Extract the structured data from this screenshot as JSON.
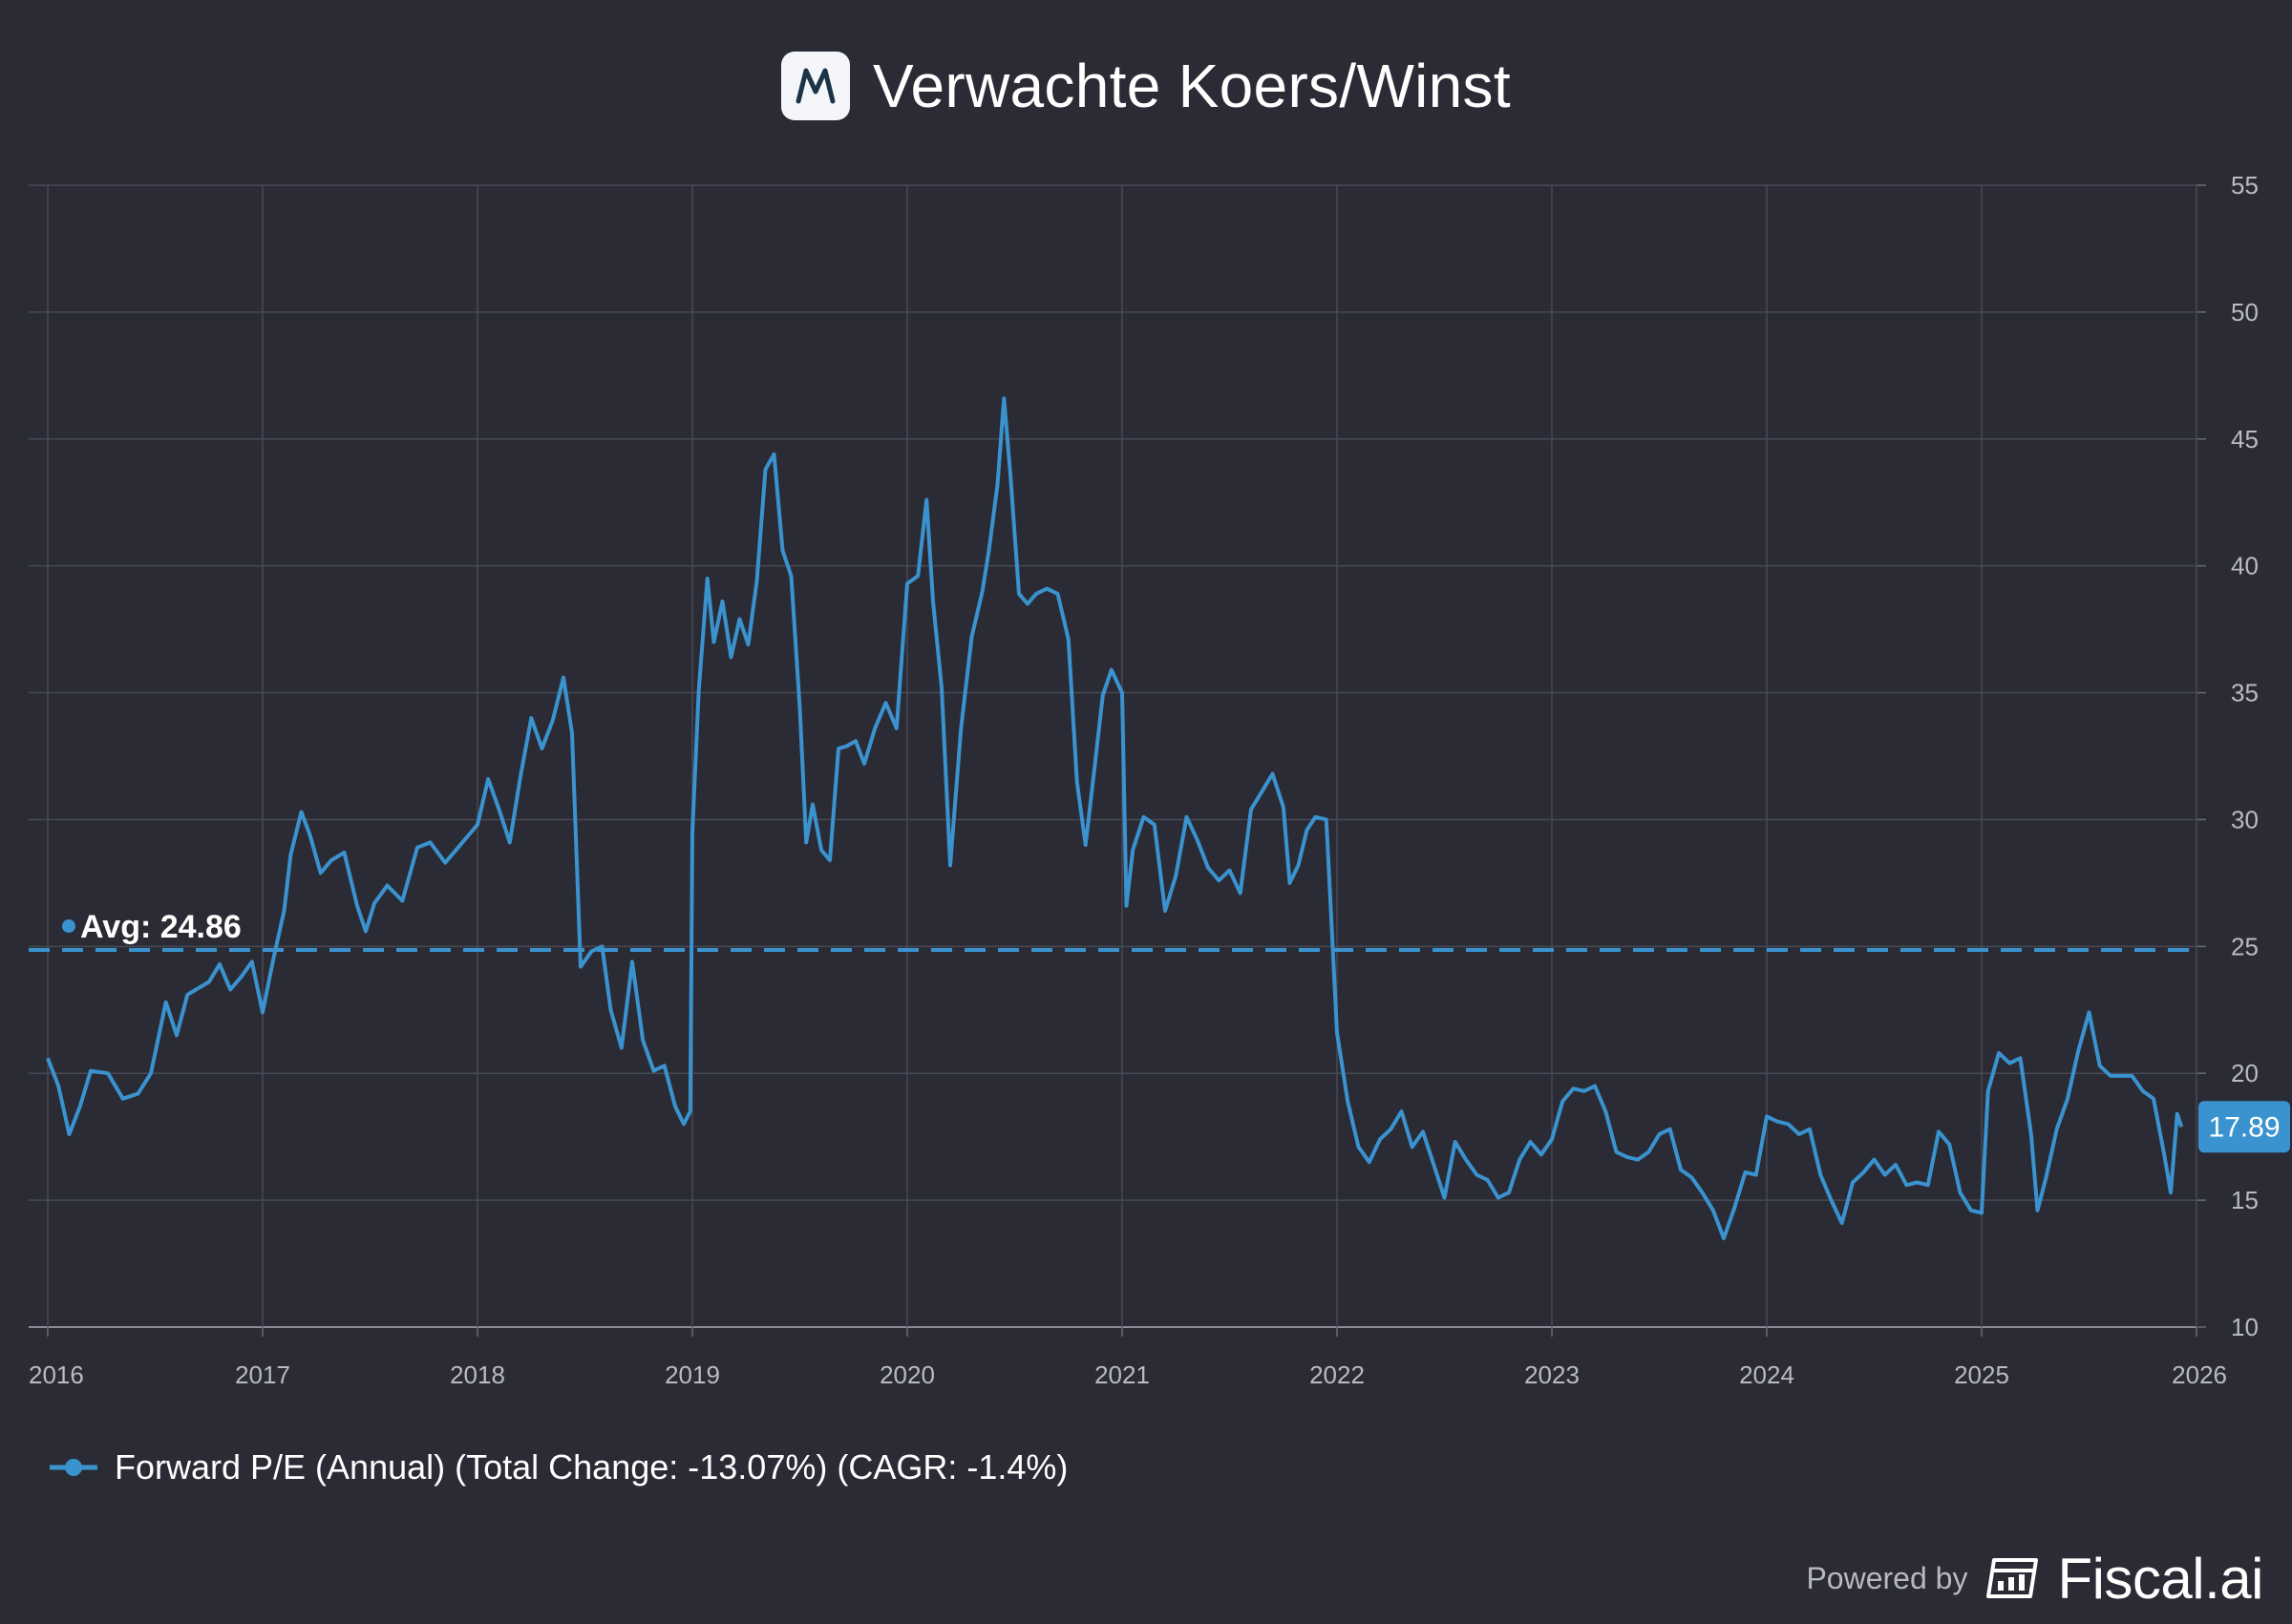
{
  "header": {
    "title": "Verwachte Koers/Winst",
    "logo_icon": "company-m-logo"
  },
  "chart_data": {
    "type": "line",
    "title": "Verwachte Koers/Winst",
    "xlabel": "",
    "ylabel": "",
    "xlim": [
      2016.0,
      2026.0
    ],
    "ylim": [
      10,
      55
    ],
    "x_ticks": [
      "2016",
      "2017",
      "2018",
      "2019",
      "2020",
      "2021",
      "2022",
      "2023",
      "2024",
      "2025",
      "2026"
    ],
    "y_ticks": [
      10,
      15,
      20,
      25,
      30,
      35,
      40,
      45,
      50,
      55
    ],
    "grid": true,
    "legend_position": "bottom-left",
    "average": {
      "label": "Avg: 24.86",
      "value": 24.86
    },
    "last_value_label": "17.89",
    "series": [
      {
        "name": "Forward P/E (Annual) (Total Change: -13.07%) (CAGR: -1.4%)",
        "color": "#3a93cf",
        "points": [
          [
            2016.0,
            20.6
          ],
          [
            2016.05,
            19.5
          ],
          [
            2016.1,
            17.6
          ],
          [
            2016.15,
            18.7
          ],
          [
            2016.2,
            20.1
          ],
          [
            2016.28,
            20.0
          ],
          [
            2016.35,
            19.0
          ],
          [
            2016.42,
            19.2
          ],
          [
            2016.48,
            20.0
          ],
          [
            2016.55,
            22.8
          ],
          [
            2016.6,
            21.5
          ],
          [
            2016.65,
            23.1
          ],
          [
            2016.75,
            23.6
          ],
          [
            2016.8,
            24.3
          ],
          [
            2016.85,
            23.3
          ],
          [
            2016.9,
            23.8
          ],
          [
            2016.95,
            24.4
          ],
          [
            2017.0,
            22.4
          ],
          [
            2017.05,
            24.5
          ],
          [
            2017.1,
            26.4
          ],
          [
            2017.13,
            28.6
          ],
          [
            2017.18,
            30.3
          ],
          [
            2017.22,
            29.4
          ],
          [
            2017.27,
            27.9
          ],
          [
            2017.32,
            28.4
          ],
          [
            2017.38,
            28.7
          ],
          [
            2017.44,
            26.6
          ],
          [
            2017.48,
            25.6
          ],
          [
            2017.52,
            26.7
          ],
          [
            2017.58,
            27.4
          ],
          [
            2017.65,
            26.8
          ],
          [
            2017.72,
            28.9
          ],
          [
            2017.78,
            29.1
          ],
          [
            2017.85,
            28.3
          ],
          [
            2017.92,
            29.0
          ],
          [
            2018.0,
            29.8
          ],
          [
            2018.05,
            31.6
          ],
          [
            2018.1,
            30.4
          ],
          [
            2018.15,
            29.1
          ],
          [
            2018.2,
            31.7
          ],
          [
            2018.25,
            34.0
          ],
          [
            2018.3,
            32.8
          ],
          [
            2018.35,
            33.9
          ],
          [
            2018.4,
            35.6
          ],
          [
            2018.44,
            33.4
          ],
          [
            2018.48,
            24.2
          ],
          [
            2018.53,
            24.8
          ],
          [
            2018.58,
            25.0
          ],
          [
            2018.62,
            22.5
          ],
          [
            2018.67,
            21.0
          ],
          [
            2018.72,
            24.4
          ],
          [
            2018.77,
            21.3
          ],
          [
            2018.82,
            20.1
          ],
          [
            2018.87,
            20.3
          ],
          [
            2018.92,
            18.7
          ],
          [
            2018.96,
            18.0
          ],
          [
            2018.99,
            18.5
          ],
          [
            2019.0,
            29.5
          ],
          [
            2019.03,
            35.1
          ],
          [
            2019.07,
            39.5
          ],
          [
            2019.1,
            37.0
          ],
          [
            2019.14,
            38.6
          ],
          [
            2019.18,
            36.4
          ],
          [
            2019.22,
            37.9
          ],
          [
            2019.26,
            36.9
          ],
          [
            2019.3,
            39.4
          ],
          [
            2019.34,
            43.8
          ],
          [
            2019.38,
            44.4
          ],
          [
            2019.42,
            40.6
          ],
          [
            2019.46,
            39.6
          ],
          [
            2019.5,
            34.4
          ],
          [
            2019.53,
            29.1
          ],
          [
            2019.56,
            30.6
          ],
          [
            2019.6,
            28.8
          ],
          [
            2019.64,
            28.4
          ],
          [
            2019.68,
            32.8
          ],
          [
            2019.72,
            32.9
          ],
          [
            2019.76,
            33.1
          ],
          [
            2019.8,
            32.2
          ],
          [
            2019.85,
            33.6
          ],
          [
            2019.9,
            34.6
          ],
          [
            2019.95,
            33.6
          ],
          [
            2020.0,
            39.3
          ],
          [
            2020.05,
            39.6
          ],
          [
            2020.09,
            42.6
          ],
          [
            2020.12,
            38.6
          ],
          [
            2020.16,
            35.2
          ],
          [
            2020.2,
            28.2
          ],
          [
            2020.25,
            33.6
          ],
          [
            2020.3,
            37.2
          ],
          [
            2020.35,
            39.0
          ],
          [
            2020.38,
            40.6
          ],
          [
            2020.42,
            43.2
          ],
          [
            2020.45,
            46.6
          ],
          [
            2020.48,
            43.6
          ],
          [
            2020.52,
            38.9
          ],
          [
            2020.56,
            38.5
          ],
          [
            2020.6,
            38.9
          ],
          [
            2020.65,
            39.1
          ],
          [
            2020.7,
            38.9
          ],
          [
            2020.75,
            37.1
          ],
          [
            2020.79,
            31.5
          ],
          [
            2020.83,
            29.0
          ],
          [
            2020.87,
            31.9
          ],
          [
            2020.91,
            34.9
          ],
          [
            2020.95,
            35.9
          ],
          [
            2021.0,
            35.0
          ],
          [
            2021.02,
            26.6
          ],
          [
            2021.05,
            28.8
          ],
          [
            2021.1,
            30.1
          ],
          [
            2021.15,
            29.8
          ],
          [
            2021.2,
            26.4
          ],
          [
            2021.25,
            27.8
          ],
          [
            2021.3,
            30.1
          ],
          [
            2021.35,
            29.2
          ],
          [
            2021.4,
            28.1
          ],
          [
            2021.45,
            27.6
          ],
          [
            2021.5,
            28.0
          ],
          [
            2021.55,
            27.1
          ],
          [
            2021.6,
            30.4
          ],
          [
            2021.65,
            31.1
          ],
          [
            2021.7,
            31.8
          ],
          [
            2021.75,
            30.5
          ],
          [
            2021.78,
            27.5
          ],
          [
            2021.82,
            28.2
          ],
          [
            2021.86,
            29.6
          ],
          [
            2021.9,
            30.1
          ],
          [
            2021.95,
            30.0
          ],
          [
            2022.0,
            21.6
          ],
          [
            2022.05,
            18.9
          ],
          [
            2022.1,
            17.1
          ],
          [
            2022.15,
            16.5
          ],
          [
            2022.2,
            17.4
          ],
          [
            2022.25,
            17.8
          ],
          [
            2022.3,
            18.5
          ],
          [
            2022.35,
            17.1
          ],
          [
            2022.4,
            17.7
          ],
          [
            2022.45,
            16.4
          ],
          [
            2022.5,
            15.1
          ],
          [
            2022.55,
            17.3
          ],
          [
            2022.6,
            16.6
          ],
          [
            2022.65,
            16.0
          ],
          [
            2022.7,
            15.8
          ],
          [
            2022.75,
            15.1
          ],
          [
            2022.8,
            15.3
          ],
          [
            2022.85,
            16.6
          ],
          [
            2022.9,
            17.3
          ],
          [
            2022.95,
            16.8
          ],
          [
            2023.0,
            17.4
          ],
          [
            2023.05,
            18.9
          ],
          [
            2023.1,
            19.4
          ],
          [
            2023.15,
            19.3
          ],
          [
            2023.2,
            19.5
          ],
          [
            2023.25,
            18.5
          ],
          [
            2023.3,
            16.9
          ],
          [
            2023.35,
            16.7
          ],
          [
            2023.4,
            16.6
          ],
          [
            2023.45,
            16.9
          ],
          [
            2023.5,
            17.6
          ],
          [
            2023.55,
            17.8
          ],
          [
            2023.6,
            16.2
          ],
          [
            2023.65,
            15.9
          ],
          [
            2023.7,
            15.3
          ],
          [
            2023.75,
            14.6
          ],
          [
            2023.8,
            13.5
          ],
          [
            2023.85,
            14.7
          ],
          [
            2023.9,
            16.1
          ],
          [
            2023.95,
            16.0
          ],
          [
            2024.0,
            18.3
          ],
          [
            2024.05,
            18.1
          ],
          [
            2024.1,
            18.0
          ],
          [
            2024.15,
            17.6
          ],
          [
            2024.2,
            17.8
          ],
          [
            2024.25,
            16.0
          ],
          [
            2024.3,
            15.0
          ],
          [
            2024.35,
            14.1
          ],
          [
            2024.4,
            15.7
          ],
          [
            2024.45,
            16.1
          ],
          [
            2024.5,
            16.6
          ],
          [
            2024.55,
            16.0
          ],
          [
            2024.6,
            16.4
          ],
          [
            2024.65,
            15.6
          ],
          [
            2024.7,
            15.7
          ],
          [
            2024.75,
            15.6
          ],
          [
            2024.8,
            17.7
          ],
          [
            2024.85,
            17.2
          ],
          [
            2024.9,
            15.3
          ],
          [
            2024.95,
            14.6
          ],
          [
            2025.0,
            14.5
          ],
          [
            2025.03,
            19.3
          ],
          [
            2025.08,
            20.8
          ],
          [
            2025.13,
            20.4
          ],
          [
            2025.18,
            20.6
          ],
          [
            2025.23,
            17.6
          ],
          [
            2025.26,
            14.6
          ],
          [
            2025.3,
            15.9
          ],
          [
            2025.35,
            17.8
          ],
          [
            2025.4,
            19.0
          ],
          [
            2025.45,
            20.9
          ],
          [
            2025.5,
            22.4
          ],
          [
            2025.55,
            20.3
          ],
          [
            2025.6,
            19.9
          ],
          [
            2025.65,
            19.9
          ],
          [
            2025.7,
            19.9
          ],
          [
            2025.75,
            19.3
          ],
          [
            2025.8,
            19.0
          ],
          [
            2025.85,
            16.8
          ],
          [
            2025.88,
            15.3
          ],
          [
            2025.91,
            18.4
          ],
          [
            2025.93,
            17.89
          ]
        ]
      }
    ]
  },
  "legend": {
    "label": "Forward P/E (Annual) (Total Change: -13.07%) (CAGR: -1.4%)"
  },
  "footer": {
    "powered_by": "Powered by",
    "brand": "Fiscal.ai",
    "brand_icon": "fiscal-ai-logo-icon"
  }
}
